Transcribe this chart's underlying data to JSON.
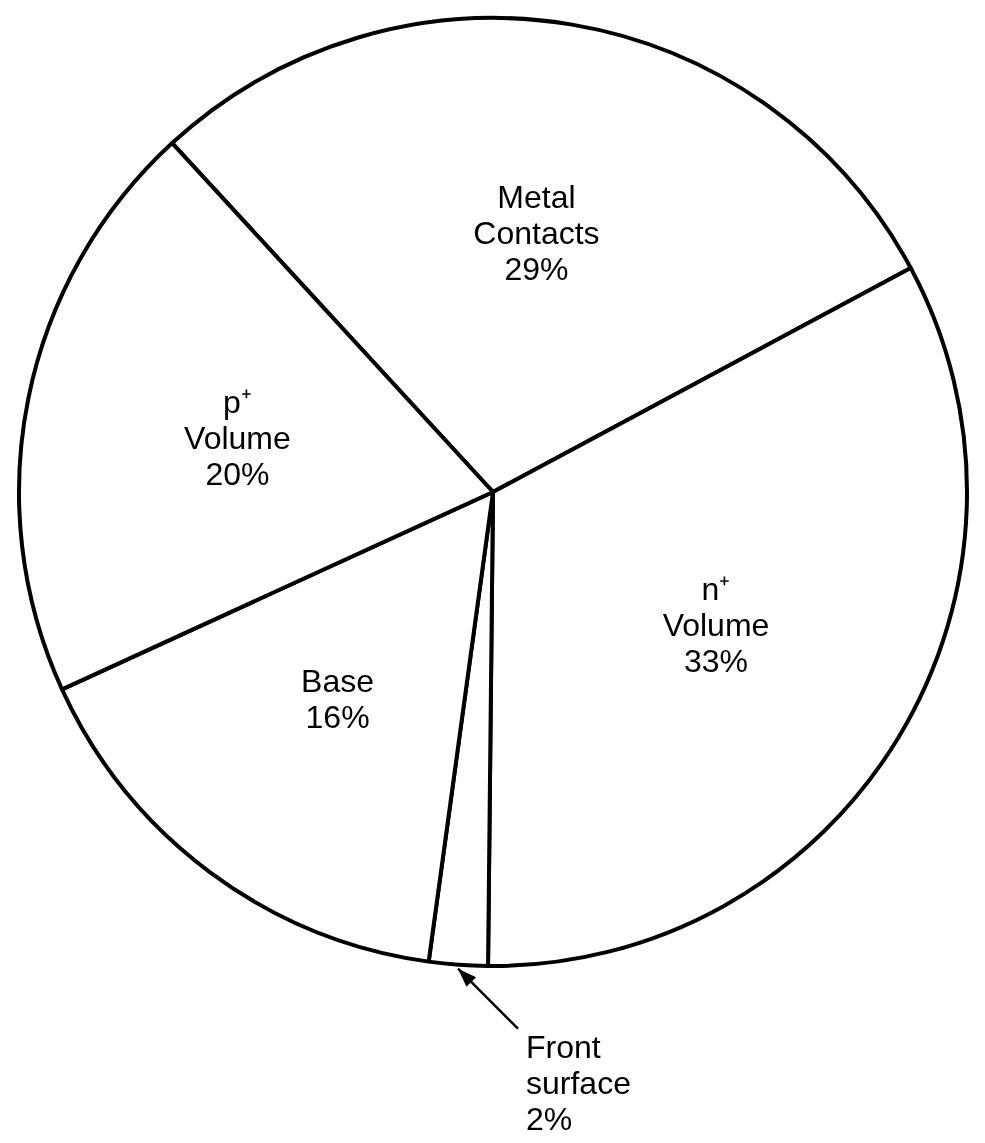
{
  "chart_data": {
    "type": "pie",
    "categories": [
      "Metal Contacts",
      "n⁺ Volume",
      "Front surface",
      "Base",
      "p⁺ Volume"
    ],
    "values": [
      29,
      33,
      2,
      16,
      20
    ],
    "value_labels": [
      "29%",
      "33%",
      "2%",
      "16%",
      "20%"
    ],
    "colors": [
      "#ffffff",
      "#ffffff",
      "#ffffff",
      "#ffffff",
      "#ffffff"
    ],
    "legend": false
  }
}
